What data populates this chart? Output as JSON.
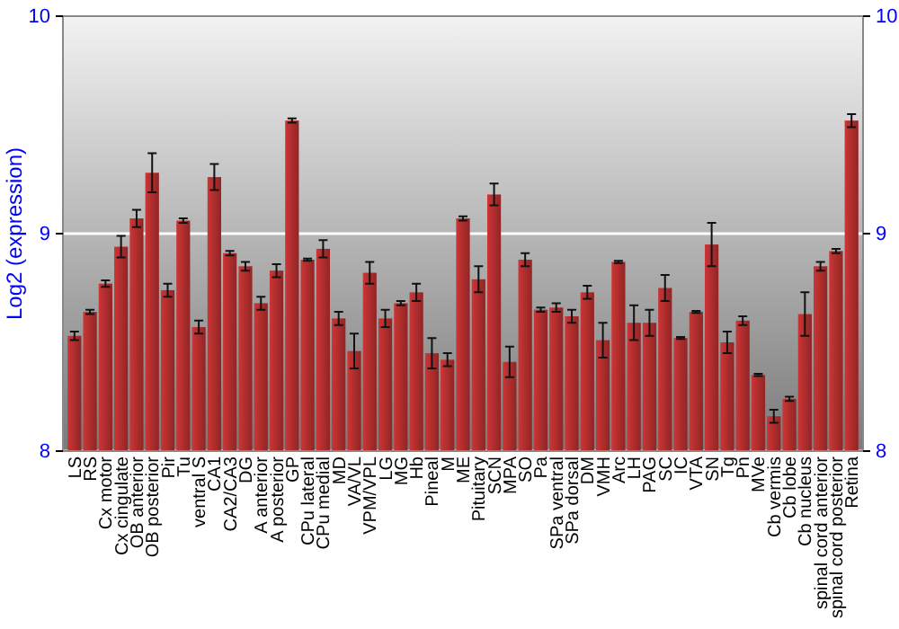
{
  "chart_data": {
    "type": "bar",
    "ylabel": "Log2 (expression)",
    "categories": [
      "LS",
      "RS",
      "Cx motor",
      "Cx cingulate",
      "OB anterior",
      "OB posterior",
      "Pir",
      "Tu",
      "ventral S",
      "CA1",
      "CA2/CA3",
      "DG",
      "A anterior",
      "A posterior",
      "GP",
      "CPu lateral",
      "CPu medial",
      "MD",
      "VA/VL",
      "VPM/VPL",
      "LG",
      "MG",
      "Hb",
      "Pineal",
      "M",
      "ME",
      "Pituitary",
      "SCN",
      "MPA",
      "SO",
      "Pa",
      "SPa ventral",
      "SPa dorsal",
      "DM",
      "VMH",
      "Arc",
      "LH",
      "PAG",
      "SC",
      "IC",
      "VTA",
      "SN",
      "Tg",
      "Pn",
      "MVe",
      "Cb vermis",
      "Cb lobe",
      "Cb nucleus",
      "spinal cord anterior",
      "spinal cord posterior",
      "Retina"
    ],
    "values": [
      8.53,
      8.64,
      8.77,
      8.94,
      9.07,
      9.28,
      8.74,
      9.06,
      8.57,
      9.26,
      8.91,
      8.85,
      8.68,
      8.83,
      9.52,
      8.88,
      8.93,
      8.61,
      8.46,
      8.82,
      8.61,
      8.68,
      8.73,
      8.45,
      8.42,
      9.07,
      8.79,
      9.18,
      8.41,
      8.88,
      8.65,
      8.66,
      8.62,
      8.73,
      8.51,
      8.87,
      8.59,
      8.59,
      8.75,
      8.52,
      8.64,
      8.95,
      8.5,
      8.6,
      8.35,
      8.16,
      8.24,
      8.63,
      8.85,
      8.92,
      9.52
    ],
    "errors": [
      0.02,
      0.01,
      0.015,
      0.05,
      0.04,
      0.09,
      0.03,
      0.01,
      0.03,
      0.06,
      0.01,
      0.02,
      0.03,
      0.03,
      0.01,
      0.005,
      0.04,
      0.03,
      0.08,
      0.05,
      0.04,
      0.01,
      0.04,
      0.07,
      0.03,
      0.01,
      0.06,
      0.05,
      0.07,
      0.03,
      0.01,
      0.02,
      0.03,
      0.03,
      0.08,
      0.005,
      0.08,
      0.06,
      0.06,
      0.005,
      0.005,
      0.1,
      0.05,
      0.02,
      0.005,
      0.03,
      0.01,
      0.1,
      0.02,
      0.01,
      0.03
    ],
    "color": "#b22e2e",
    "ylim": [
      8,
      10
    ],
    "yticks": [
      8,
      9,
      10
    ],
    "y2lim": [
      8,
      10
    ],
    "y2ticks": [
      8,
      9,
      10
    ],
    "grid": "y"
  }
}
